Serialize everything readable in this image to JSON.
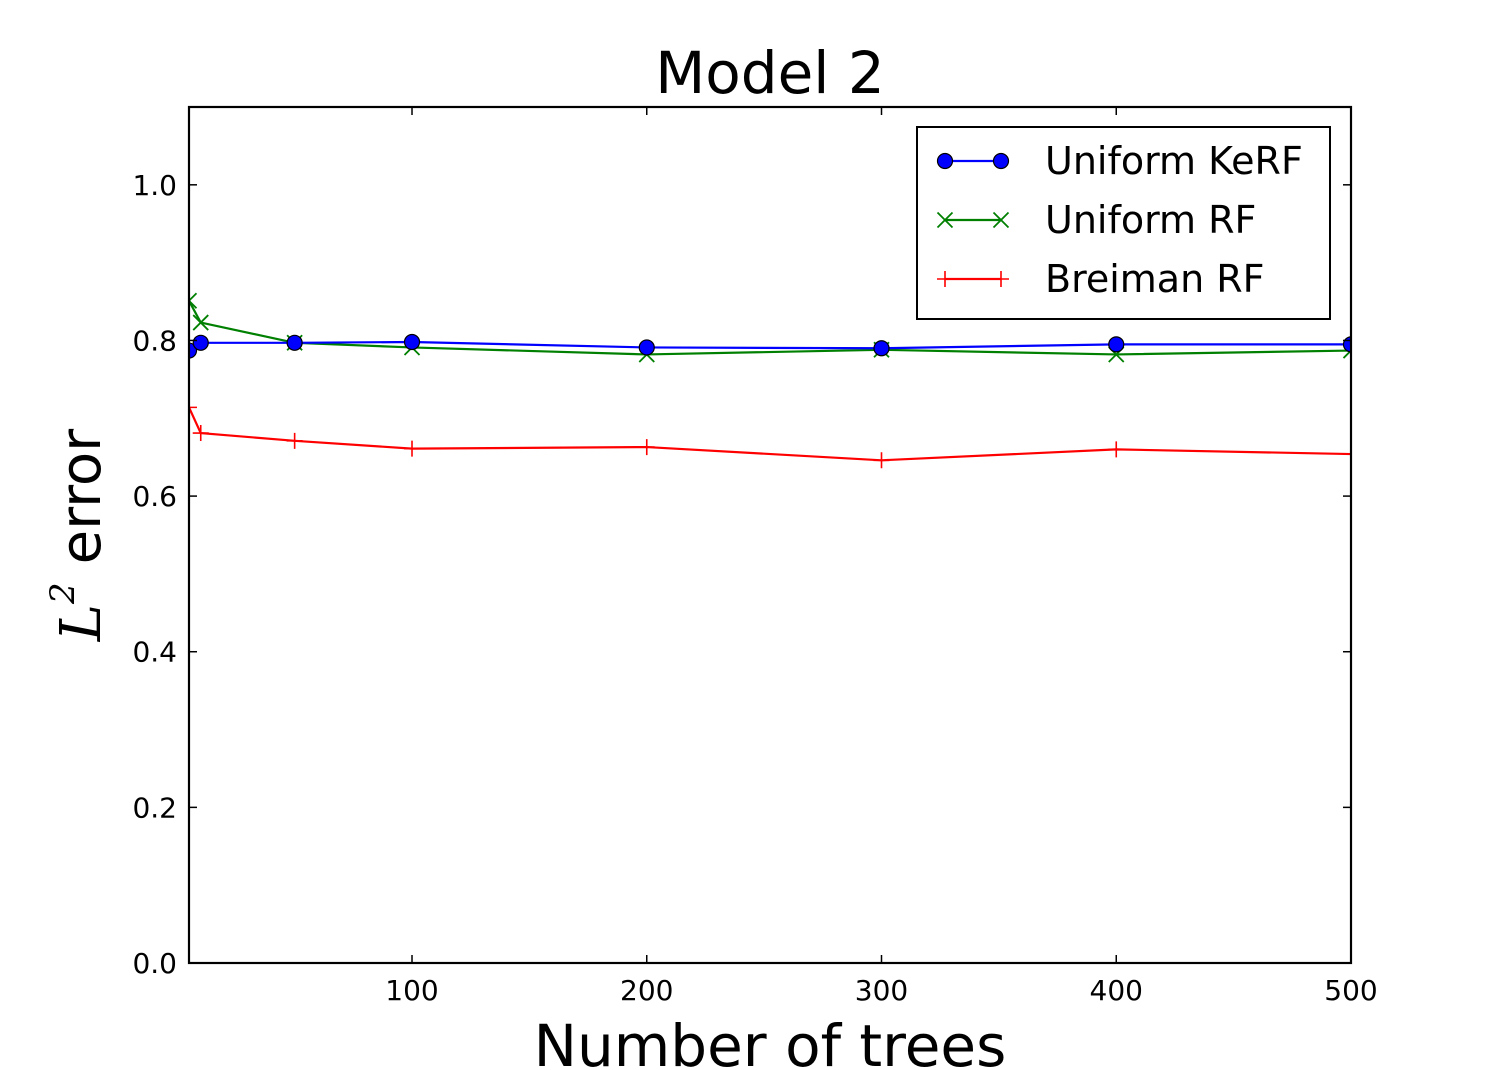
{
  "chart_data": {
    "type": "line",
    "title": "Model 2",
    "xlabel": "Number of trees",
    "ylabel": {
      "math": "L",
      "superscript": "2",
      "text": "error"
    },
    "xlim": [
      5,
      500
    ],
    "ylim": [
      0.0,
      1.1
    ],
    "xticks": [
      100,
      200,
      300,
      400,
      500
    ],
    "xtick_labels": [
      "100",
      "200",
      "300",
      "400",
      "500"
    ],
    "yticks": [
      0.0,
      0.2,
      0.4,
      0.6,
      0.8,
      1.0
    ],
    "ytick_labels": [
      "0.0",
      "0.2",
      "0.4",
      "0.6",
      "0.8",
      "1.0"
    ],
    "grid": false,
    "legend_position": "top-right",
    "x": [
      5,
      10,
      50,
      100,
      200,
      300,
      400,
      500
    ],
    "series": [
      {
        "name": "Uniform KeRF",
        "color": "#0000ff",
        "marker": "circle",
        "values": [
          0.787,
          0.797,
          0.797,
          0.798,
          0.791,
          0.79,
          0.795,
          0.795
        ]
      },
      {
        "name": "Uniform RF",
        "color": "#008000",
        "marker": "x",
        "values": [
          0.851,
          0.823,
          0.797,
          0.791,
          0.782,
          0.788,
          0.782,
          0.787
        ]
      },
      {
        "name": "Breiman RF",
        "color": "#ff0000",
        "marker": "plus",
        "values": [
          0.714,
          0.681,
          0.671,
          0.661,
          0.663,
          0.646,
          0.66,
          0.654
        ]
      }
    ]
  }
}
